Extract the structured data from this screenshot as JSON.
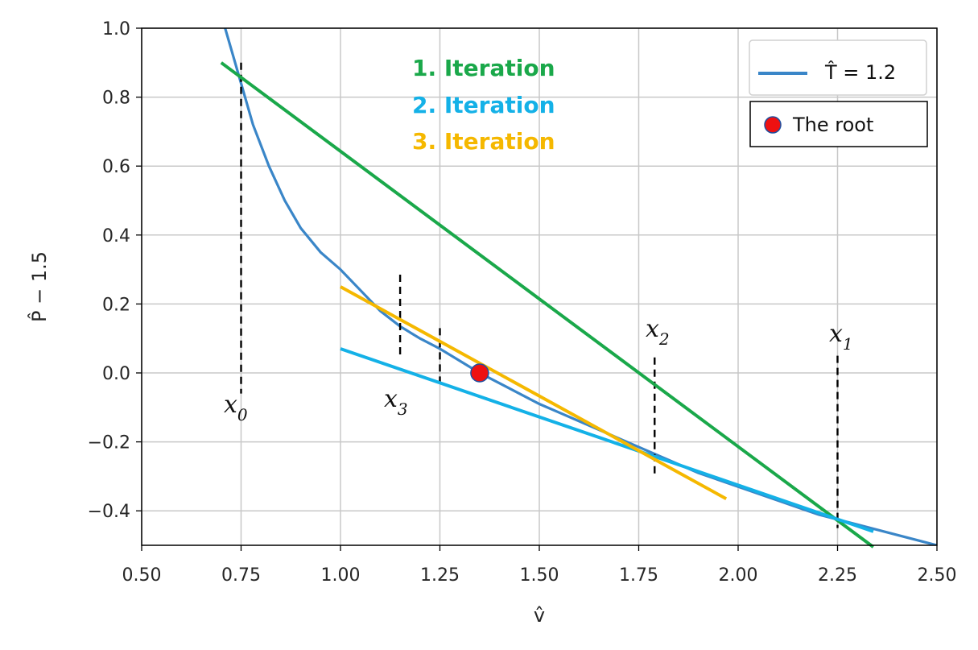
{
  "chart_data": {
    "type": "line",
    "xlabel": "v̂",
    "ylabel": "P̂ − 1.5",
    "xlim": [
      0.5,
      2.5
    ],
    "ylim": [
      -0.5,
      1.0
    ],
    "x_ticks": [
      0.5,
      0.75,
      1.0,
      1.25,
      1.5,
      1.75,
      2.0,
      2.25,
      2.5
    ],
    "x_tick_labels": [
      "0.50",
      "0.75",
      "1.00",
      "1.25",
      "1.50",
      "1.75",
      "2.00",
      "2.25",
      "2.50"
    ],
    "y_ticks": [
      -0.4,
      -0.2,
      0.0,
      0.2,
      0.4,
      0.6,
      0.8,
      1.0
    ],
    "y_tick_labels": [
      "−0.4",
      "−0.2",
      "0.0",
      "0.2",
      "0.4",
      "0.6",
      "0.8",
      "1.0"
    ],
    "grid": true,
    "legend_position": "top-right",
    "series": [
      {
        "name": "T̂ = 1.2",
        "color": "#3a86c8",
        "x": [
          0.71,
          0.73,
          0.75,
          0.78,
          0.82,
          0.86,
          0.9,
          0.95,
          1.0,
          1.05,
          1.1,
          1.15,
          1.2,
          1.25,
          1.3,
          1.35,
          1.4,
          1.45,
          1.5,
          1.55,
          1.6,
          1.7,
          1.8,
          1.9,
          2.0,
          2.1,
          2.2,
          2.3,
          2.4,
          2.5
        ],
        "y": [
          1.0,
          0.92,
          0.84,
          0.72,
          0.6,
          0.5,
          0.42,
          0.35,
          0.3,
          0.24,
          0.18,
          0.135,
          0.1,
          0.07,
          0.035,
          0.0,
          -0.03,
          -0.06,
          -0.09,
          -0.115,
          -0.14,
          -0.19,
          -0.24,
          -0.29,
          -0.33,
          -0.37,
          -0.41,
          -0.44,
          -0.47,
          -0.5
        ]
      }
    ],
    "tangents": [
      {
        "label": "1. Iteration",
        "color": "#1aa84a",
        "x": [
          0.7,
          2.34
        ],
        "y": [
          0.9,
          -0.505
        ]
      },
      {
        "label": "2. Iteration",
        "color": "#14b1e7",
        "x": [
          1.0,
          2.34
        ],
        "y": [
          0.07,
          -0.46
        ]
      },
      {
        "label": "3. Iteration",
        "color": "#f5b800",
        "x": [
          1.0,
          1.97
        ],
        "y": [
          0.25,
          -0.365
        ]
      }
    ],
    "vertical_markers": [
      {
        "label": "x",
        "sub": "0",
        "x": 0.75,
        "y_from": 0.9,
        "y_to": -0.06
      },
      {
        "label": "x",
        "sub": "1",
        "x": 2.25,
        "y_from": 0.05,
        "y_to": -0.45
      },
      {
        "label": "x",
        "sub": "2",
        "x": 1.79,
        "y_from": 0.045,
        "y_to": -0.3
      },
      {
        "label": "x",
        "sub": "3",
        "x": 1.15,
        "y_from": 0.285,
        "y_to": 0.05
      },
      {
        "label": "",
        "sub": "",
        "x": 1.25,
        "y_from": 0.13,
        "y_to": -0.04
      }
    ],
    "root": {
      "label": "The root",
      "x": 1.35,
      "y": 0.0,
      "color": "#ee1111"
    }
  }
}
